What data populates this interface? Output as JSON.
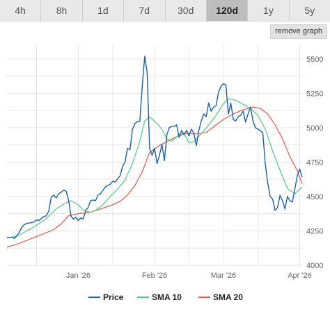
{
  "tabs": [
    {
      "label": "4h",
      "active": false
    },
    {
      "label": "8h",
      "active": false
    },
    {
      "label": "1d",
      "active": false
    },
    {
      "label": "7d",
      "active": false
    },
    {
      "label": "30d",
      "active": false
    },
    {
      "label": "120d",
      "active": true
    },
    {
      "label": "1y",
      "active": false
    },
    {
      "label": "5y",
      "active": false
    }
  ],
  "remove_graph_label": "remove graph",
  "colors": {
    "price": "#1f5fa8",
    "sma10": "#55c886",
    "sma20": "#e8584c",
    "grid": "#e6e6e6",
    "active_tab": "#bdbdbd"
  },
  "chart_data": {
    "type": "line",
    "title": "",
    "xlabel": "",
    "ylabel": "",
    "ylim": [
      4000,
      5600
    ],
    "xlim": [
      "2025-12-03",
      "2026-04-02"
    ],
    "y_ticks": [
      4000,
      4250,
      4500,
      4750,
      5000,
      5250,
      5500
    ],
    "x_ticks": [
      {
        "label": "Jan '26",
        "date": "2026-01-01"
      },
      {
        "label": "Feb '26",
        "date": "2026-02-01"
      },
      {
        "label": "Mar '26",
        "date": "2026-03-01"
      },
      {
        "label": "Apr '26",
        "date": "2026-04-01"
      }
    ],
    "grid": true,
    "legend_position": "bottom",
    "series": [
      {
        "name": "Price",
        "color": "#1f5fa8",
        "points": [
          [
            "2025-12-03",
            4200
          ],
          [
            "2025-12-05",
            4205
          ],
          [
            "2025-12-06",
            4195
          ],
          [
            "2025-12-07",
            4215
          ],
          [
            "2025-12-08",
            4240
          ],
          [
            "2025-12-09",
            4275
          ],
          [
            "2025-12-10",
            4295
          ],
          [
            "2025-12-11",
            4305
          ],
          [
            "2025-12-13",
            4310
          ],
          [
            "2025-12-14",
            4315
          ],
          [
            "2025-12-15",
            4330
          ],
          [
            "2025-12-16",
            4325
          ],
          [
            "2025-12-17",
            4340
          ],
          [
            "2025-12-18",
            4355
          ],
          [
            "2025-12-19",
            4360
          ],
          [
            "2025-12-20",
            4395
          ],
          [
            "2025-12-21",
            4495
          ],
          [
            "2025-12-22",
            4510
          ],
          [
            "2025-12-23",
            4490
          ],
          [
            "2025-12-24",
            4520
          ],
          [
            "2025-12-25",
            4530
          ],
          [
            "2025-12-26",
            4545
          ],
          [
            "2025-12-27",
            4540
          ],
          [
            "2025-12-28",
            4480
          ],
          [
            "2025-12-29",
            4360
          ],
          [
            "2025-12-30",
            4335
          ],
          [
            "2025-12-31",
            4350
          ],
          [
            "2026-01-01",
            4325
          ],
          [
            "2026-01-02",
            4345
          ],
          [
            "2026-01-03",
            4335
          ],
          [
            "2026-01-04",
            4400
          ],
          [
            "2026-01-05",
            4420
          ],
          [
            "2026-01-06",
            4470
          ],
          [
            "2026-01-07",
            4475
          ],
          [
            "2026-01-08",
            4470
          ],
          [
            "2026-01-09",
            4510
          ],
          [
            "2026-01-10",
            4520
          ],
          [
            "2026-01-11",
            4545
          ],
          [
            "2026-01-12",
            4570
          ],
          [
            "2026-01-13",
            4580
          ],
          [
            "2026-01-14",
            4590
          ],
          [
            "2026-01-15",
            4610
          ],
          [
            "2026-01-16",
            4605
          ],
          [
            "2026-01-17",
            4630
          ],
          [
            "2026-01-18",
            4650
          ],
          [
            "2026-01-19",
            4720
          ],
          [
            "2026-01-20",
            4750
          ],
          [
            "2026-01-21",
            4850
          ],
          [
            "2026-01-22",
            4840
          ],
          [
            "2026-01-23",
            4985
          ],
          [
            "2026-01-24",
            5030
          ],
          [
            "2026-01-25",
            5045
          ],
          [
            "2026-01-26",
            5045
          ],
          [
            "2026-01-27",
            5300
          ],
          [
            "2026-01-28",
            5520
          ],
          [
            "2026-01-29",
            5400
          ],
          [
            "2026-01-30",
            4850
          ],
          [
            "2026-01-31",
            4800
          ],
          [
            "2026-02-01",
            4850
          ],
          [
            "2026-02-02",
            4740
          ],
          [
            "2026-02-03",
            4800
          ],
          [
            "2026-02-04",
            4880
          ],
          [
            "2026-02-05",
            4760
          ],
          [
            "2026-02-06",
            4950
          ],
          [
            "2026-02-07",
            5000
          ],
          [
            "2026-02-08",
            5010
          ],
          [
            "2026-02-09",
            5010
          ],
          [
            "2026-02-10",
            5020
          ],
          [
            "2026-02-11",
            4930
          ],
          [
            "2026-02-12",
            4980
          ],
          [
            "2026-02-13",
            4950
          ],
          [
            "2026-02-14",
            4980
          ],
          [
            "2026-02-15",
            4940
          ],
          [
            "2026-02-16",
            4990
          ],
          [
            "2026-02-17",
            4960
          ],
          [
            "2026-02-18",
            4870
          ],
          [
            "2026-02-19",
            4980
          ],
          [
            "2026-02-20",
            5050
          ],
          [
            "2026-02-21",
            5100
          ],
          [
            "2026-02-22",
            5080
          ],
          [
            "2026-02-23",
            5180
          ],
          [
            "2026-02-24",
            5120
          ],
          [
            "2026-02-25",
            5150
          ],
          [
            "2026-02-26",
            5160
          ],
          [
            "2026-02-27",
            5260
          ],
          [
            "2026-02-28",
            5300
          ],
          [
            "2026-03-01",
            5320
          ],
          [
            "2026-03-02",
            5310
          ],
          [
            "2026-03-03",
            5100
          ],
          [
            "2026-03-04",
            5180
          ],
          [
            "2026-03-05",
            5060
          ],
          [
            "2026-03-06",
            5050
          ],
          [
            "2026-03-07",
            5080
          ],
          [
            "2026-03-08",
            5090
          ],
          [
            "2026-03-09",
            5120
          ],
          [
            "2026-03-10",
            5040
          ],
          [
            "2026-03-11",
            5100
          ],
          [
            "2026-03-12",
            5150
          ],
          [
            "2026-03-13",
            5050
          ],
          [
            "2026-03-14",
            5000
          ],
          [
            "2026-03-15",
            4990
          ],
          [
            "2026-03-16",
            4980
          ],
          [
            "2026-03-17",
            4960
          ],
          [
            "2026-03-18",
            4740
          ],
          [
            "2026-03-19",
            4600
          ],
          [
            "2026-03-20",
            4500
          ],
          [
            "2026-03-21",
            4480
          ],
          [
            "2026-03-22",
            4400
          ],
          [
            "2026-03-23",
            4420
          ],
          [
            "2026-03-24",
            4510
          ],
          [
            "2026-03-25",
            4470
          ],
          [
            "2026-03-26",
            4410
          ],
          [
            "2026-03-27",
            4500
          ],
          [
            "2026-03-28",
            4470
          ],
          [
            "2026-03-29",
            4460
          ],
          [
            "2026-03-30",
            4550
          ],
          [
            "2026-03-31",
            4650
          ],
          [
            "2026-04-01",
            4700
          ],
          [
            "2026-04-02",
            4640
          ]
        ]
      },
      {
        "name": "SMA 10",
        "color": "#55c886",
        "points": [
          [
            "2025-12-03",
            4200
          ],
          [
            "2025-12-07",
            4210
          ],
          [
            "2025-12-11",
            4250
          ],
          [
            "2025-12-15",
            4290
          ],
          [
            "2025-12-19",
            4340
          ],
          [
            "2025-12-23",
            4410
          ],
          [
            "2025-12-27",
            4455
          ],
          [
            "2025-12-29",
            4470
          ],
          [
            "2026-01-01",
            4440
          ],
          [
            "2026-01-03",
            4400
          ],
          [
            "2026-01-06",
            4385
          ],
          [
            "2026-01-08",
            4400
          ],
          [
            "2026-01-11",
            4440
          ],
          [
            "2026-01-14",
            4500
          ],
          [
            "2026-01-17",
            4555
          ],
          [
            "2026-01-20",
            4620
          ],
          [
            "2026-01-23",
            4740
          ],
          [
            "2026-01-26",
            4900
          ],
          [
            "2026-01-28",
            5050
          ],
          [
            "2026-01-30",
            5080
          ],
          [
            "2026-02-02",
            5030
          ],
          [
            "2026-02-04",
            4990
          ],
          [
            "2026-02-06",
            4920
          ],
          [
            "2026-02-08",
            4900
          ],
          [
            "2026-02-11",
            4950
          ],
          [
            "2026-02-13",
            4960
          ],
          [
            "2026-02-15",
            4890
          ],
          [
            "2026-02-17",
            4900
          ],
          [
            "2026-02-20",
            4955
          ],
          [
            "2026-02-23",
            5020
          ],
          [
            "2026-02-26",
            5090
          ],
          [
            "2026-03-01",
            5175
          ],
          [
            "2026-03-03",
            5210
          ],
          [
            "2026-03-06",
            5200
          ],
          [
            "2026-03-09",
            5170
          ],
          [
            "2026-03-12",
            5140
          ],
          [
            "2026-03-15",
            5090
          ],
          [
            "2026-03-18",
            4990
          ],
          [
            "2026-03-21",
            4830
          ],
          [
            "2026-03-24",
            4690
          ],
          [
            "2026-03-27",
            4560
          ],
          [
            "2026-03-30",
            4520
          ],
          [
            "2026-04-02",
            4570
          ]
        ]
      },
      {
        "name": "SMA 20",
        "color": "#e8584c",
        "points": [
          [
            "2025-12-03",
            4130
          ],
          [
            "2025-12-08",
            4160
          ],
          [
            "2025-12-13",
            4195
          ],
          [
            "2025-12-18",
            4230
          ],
          [
            "2025-12-22",
            4260
          ],
          [
            "2025-12-25",
            4300
          ],
          [
            "2025-12-28",
            4360
          ],
          [
            "2026-01-01",
            4375
          ],
          [
            "2026-01-06",
            4385
          ],
          [
            "2026-01-10",
            4410
          ],
          [
            "2026-01-15",
            4440
          ],
          [
            "2026-01-18",
            4465
          ],
          [
            "2026-01-21",
            4510
          ],
          [
            "2026-01-24",
            4580
          ],
          [
            "2026-01-27",
            4680
          ],
          [
            "2026-01-30",
            4820
          ],
          [
            "2026-02-02",
            4860
          ],
          [
            "2026-02-06",
            4900
          ],
          [
            "2026-02-10",
            4935
          ],
          [
            "2026-02-14",
            4960
          ],
          [
            "2026-02-18",
            4955
          ],
          [
            "2026-02-22",
            4965
          ],
          [
            "2026-02-26",
            5020
          ],
          [
            "2026-03-01",
            5060
          ],
          [
            "2026-03-05",
            5100
          ],
          [
            "2026-03-09",
            5130
          ],
          [
            "2026-03-13",
            5150
          ],
          [
            "2026-03-16",
            5140
          ],
          [
            "2026-03-19",
            5100
          ],
          [
            "2026-03-22",
            5020
          ],
          [
            "2026-03-25",
            4920
          ],
          [
            "2026-03-28",
            4790
          ],
          [
            "2026-03-31",
            4690
          ],
          [
            "2026-04-02",
            4590
          ]
        ]
      }
    ]
  }
}
